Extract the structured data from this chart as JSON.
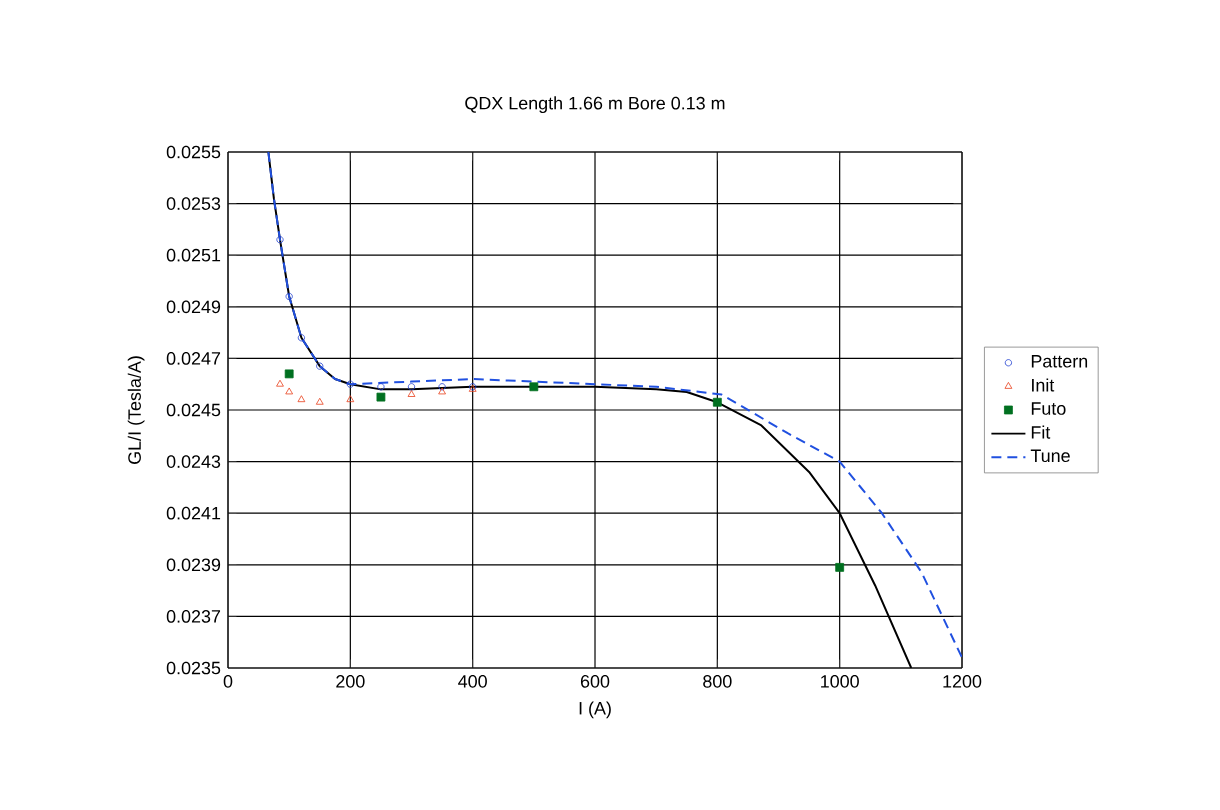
{
  "chart_data": {
    "type": "scatter",
    "title": "QDX Length 1.66 m Bore 0.13 m",
    "xlabel": "I (A)",
    "ylabel": "GL/I (Tesla/A)",
    "xlim": [
      0,
      1200
    ],
    "xticks": [
      0,
      200,
      400,
      600,
      800,
      1000,
      1200
    ],
    "ylim": [
      0.0235,
      0.0255
    ],
    "yticks": [
      0.0235,
      0.0237,
      0.0239,
      0.0241,
      0.0243,
      0.0245,
      0.0247,
      0.0249,
      0.0251,
      0.0253,
      0.0255
    ],
    "grid": true,
    "legend": "right",
    "series": [
      {
        "name": "Pattern",
        "marker": "circle",
        "color": "#1f3fd0",
        "x": [
          85,
          100,
          120,
          150,
          200,
          250,
          300,
          350,
          400
        ],
        "values": [
          0.02516,
          0.02494,
          0.02478,
          0.02467,
          0.0246,
          0.02459,
          0.02459,
          0.02459,
          0.02459
        ]
      },
      {
        "name": "Init",
        "marker": "triangle",
        "color": "#e8401c",
        "x": [
          85,
          100,
          120,
          150,
          200,
          300,
          350,
          400
        ],
        "values": [
          0.0246,
          0.02457,
          0.02454,
          0.02453,
          0.02454,
          0.02456,
          0.02457,
          0.02458
        ]
      },
      {
        "name": "Futo",
        "marker": "square",
        "color": "#007020",
        "x": [
          100,
          250,
          500,
          800,
          1000
        ],
        "values": [
          0.02464,
          0.02455,
          0.02459,
          0.02453,
          0.02389
        ]
      },
      {
        "name": "Fit",
        "type": "line",
        "marker": "none",
        "line_style": "solid",
        "color": "#000000",
        "x": [
          66,
          75,
          85,
          100,
          120,
          150,
          175,
          200,
          250,
          300,
          400,
          500,
          600,
          700,
          750,
          800,
          872,
          950,
          1000,
          1058,
          1117
        ],
        "values": [
          0.0255,
          0.02532,
          0.02516,
          0.02494,
          0.02478,
          0.02467,
          0.02462,
          0.0246,
          0.02458,
          0.02458,
          0.02459,
          0.02459,
          0.02459,
          0.02458,
          0.02457,
          0.02453,
          0.02444,
          0.02426,
          0.0241,
          0.02382,
          0.0235
        ]
      },
      {
        "name": "Tune",
        "type": "line",
        "marker": "none",
        "line_style": "dashed",
        "color": "#2050e0",
        "x": [
          66,
          75,
          85,
          100,
          120,
          150,
          175,
          200,
          300,
          400,
          500,
          600,
          700,
          807,
          915,
          1000,
          1069,
          1134,
          1200
        ],
        "values": [
          0.0255,
          0.02532,
          0.02516,
          0.02494,
          0.02478,
          0.02467,
          0.02462,
          0.0246,
          0.02461,
          0.02462,
          0.02461,
          0.0246,
          0.02459,
          0.02456,
          0.02441,
          0.0243,
          0.0241,
          0.02387,
          0.02354
        ]
      }
    ]
  }
}
